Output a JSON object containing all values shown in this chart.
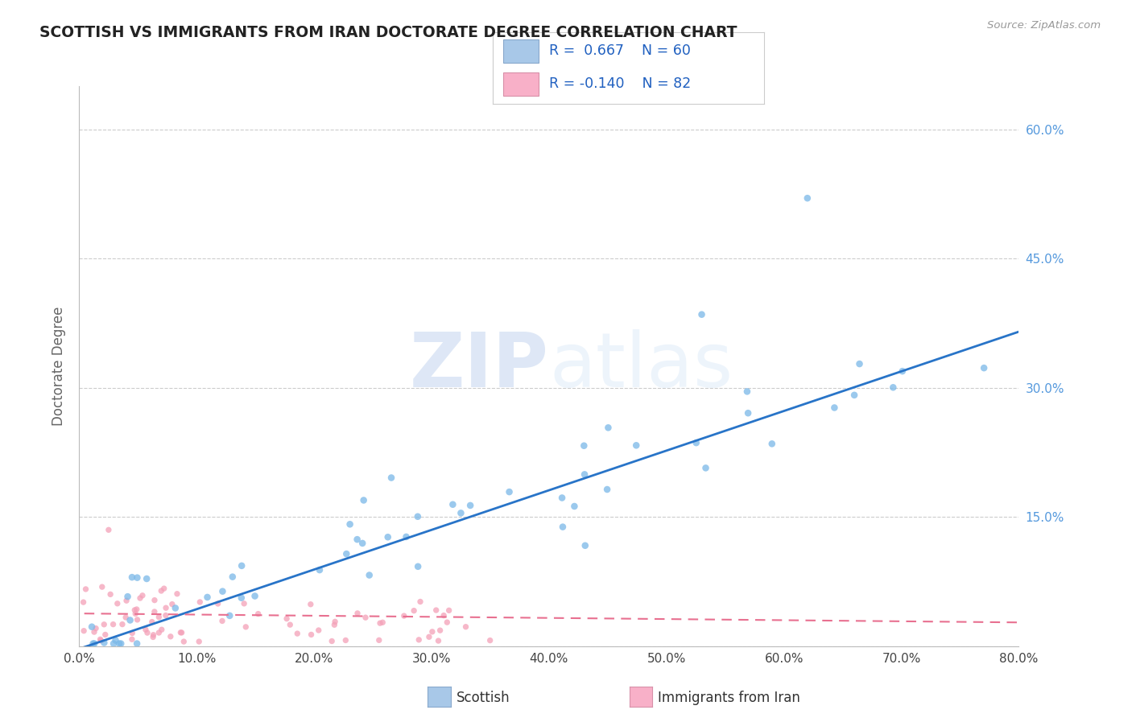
{
  "title": "SCOTTISH VS IMMIGRANTS FROM IRAN DOCTORATE DEGREE CORRELATION CHART",
  "source": "Source: ZipAtlas.com",
  "ylabel": "Doctorate Degree",
  "watermark_zip": "ZIP",
  "watermark_atlas": "atlas",
  "legend_label1": "Scottish",
  "legend_label2": "Immigrants from Iran",
  "R1": 0.667,
  "N1": 60,
  "R2": -0.14,
  "N2": 82,
  "color1": "#7ab8e8",
  "color2": "#f4a0b8",
  "line_color1": "#2874c8",
  "line_color2": "#e87090",
  "xlim": [
    0.0,
    0.8
  ],
  "ylim": [
    0.0,
    0.65
  ],
  "x_ticks": [
    0.0,
    0.1,
    0.2,
    0.3,
    0.4,
    0.5,
    0.6,
    0.7,
    0.8
  ],
  "x_tick_labels": [
    "0.0%",
    "10.0%",
    "20.0%",
    "30.0%",
    "40.0%",
    "50.0%",
    "60.0%",
    "70.0%",
    "80.0%"
  ],
  "y_ticks": [
    0.0,
    0.15,
    0.3,
    0.45,
    0.6
  ],
  "y_tick_labels_right": [
    "",
    "15.0%",
    "30.0%",
    "45.0%",
    "60.0%"
  ],
  "background_color": "#ffffff",
  "grid_color": "#cccccc",
  "tick_color": "#5599dd",
  "title_color": "#222222",
  "source_color": "#999999",
  "ylabel_color": "#666666"
}
